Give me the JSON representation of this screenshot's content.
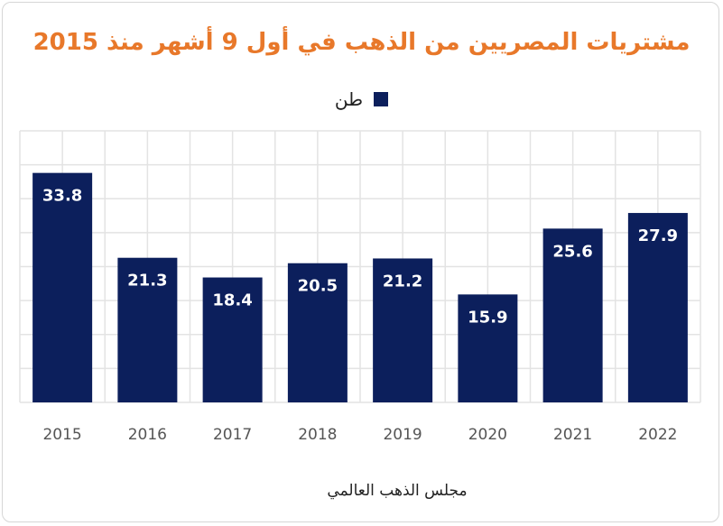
{
  "chart_data": {
    "type": "bar",
    "title": "مشتريات المصريين من الذهب في أول 9 أشهر منذ 2015",
    "categories": [
      "2015",
      "2016",
      "2017",
      "2018",
      "2019",
      "2020",
      "2021",
      "2022"
    ],
    "series": [
      {
        "name": "طن",
        "values": [
          33.8,
          21.3,
          18.4,
          20.5,
          21.2,
          15.9,
          25.6,
          27.9
        ]
      }
    ],
    "data_labels": [
      "33.8",
      "21.3",
      "18.4",
      "20.5",
      "21.2",
      "15.9",
      "25.6",
      "27.9"
    ],
    "ylim": [
      0,
      40
    ],
    "grid": true,
    "legend_position": "top",
    "colors": {
      "bar": "#0c1f5c",
      "title": "#e8782a",
      "label": "#ffffff",
      "grid": "#e3e3e3"
    }
  },
  "source": "مجلس الذهب العالمي"
}
